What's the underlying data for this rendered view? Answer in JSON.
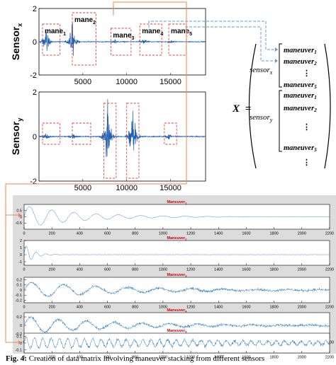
{
  "figure": {
    "matrix": {
      "lhs": "X",
      "eq": "=",
      "groups": [
        {
          "sensor": "sensor",
          "sub": "x",
          "rows": [
            "maneuver",
            "maneuver",
            "maneuver"
          ],
          "row_subs": [
            "1",
            "2",
            "5"
          ]
        },
        {
          "sensor": "sensor",
          "sub": "y",
          "rows": [
            "maneuver",
            "maneuver",
            "maneuver"
          ],
          "row_subs": [
            "1",
            "2",
            "5"
          ]
        }
      ],
      "dots": "⋮"
    },
    "caption": {
      "label": "Fig. 4:",
      "text": " Creation of data matrix involving maneuver stacking from different sensors"
    }
  },
  "chart_data": [
    {
      "type": "line",
      "title": "",
      "ylabel": "Sensor",
      "ylabel_sub": "x",
      "xlabel": "",
      "xlim": [
        0,
        19000
      ],
      "ylim": [
        -2,
        2
      ],
      "xticks": [
        "5000",
        "10000",
        "15000"
      ],
      "xtick_values": [
        5000,
        10000,
        15000
      ],
      "yticks": [
        "2",
        "0",
        "-2"
      ],
      "ytick_values": [
        2,
        0,
        -2
      ],
      "color": "#1f5fb4",
      "bursts": [
        {
          "center": 800,
          "amp": 0.9
        },
        {
          "center": 3800,
          "amp": 1.3
        },
        {
          "center": 8700,
          "amp": 0.15
        },
        {
          "center": 12000,
          "amp": 0.25
        },
        {
          "center": 15000,
          "amp": 0.15
        }
      ],
      "annotations": [
        {
          "label": "mane",
          "sub": "1",
          "x0": 400,
          "x1": 2400
        },
        {
          "label": "mane",
          "sub": "2",
          "x0": 3800,
          "x1": 6500
        },
        {
          "label": "mane",
          "sub": "3",
          "x0": 8200,
          "x1": 10500
        },
        {
          "label": "mane",
          "sub": "4",
          "x0": 11500,
          "x1": 14000
        },
        {
          "label": "mane",
          "sub": "5",
          "x0": 14800,
          "x1": 16800
        }
      ]
    },
    {
      "type": "line",
      "title": "",
      "ylabel": "Sensor",
      "ylabel_sub": "y",
      "xlabel": "",
      "xlim": [
        0,
        19000
      ],
      "ylim": [
        -2,
        2
      ],
      "xticks": [
        "5000",
        "10000",
        "15000"
      ],
      "xtick_values": [
        5000,
        10000,
        15000
      ],
      "yticks": [
        "2",
        "0",
        "-2"
      ],
      "ytick_values": [
        2,
        0,
        -2
      ],
      "color": "#1f5fb4",
      "bursts": [
        {
          "center": 800,
          "amp": 0.2
        },
        {
          "center": 3900,
          "amp": 0.2
        },
        {
          "center": 7800,
          "amp": 1.7
        },
        {
          "center": 10700,
          "amp": 1.5
        },
        {
          "center": 14800,
          "amp": 0.2
        }
      ],
      "annotations": [
        {
          "x0": 400,
          "x1": 2400
        },
        {
          "x0": 3800,
          "x1": 5900
        },
        {
          "x0": 7400,
          "x1": 8800
        },
        {
          "x0": 10000,
          "x1": 11400
        },
        {
          "x0": 14300,
          "x1": 15700
        }
      ]
    },
    {
      "type": "line",
      "title": "Maneuver",
      "title_sub": "1",
      "xlim": [
        0,
        2200
      ],
      "ylim": [
        -1,
        1
      ],
      "yticks": [
        "0.5",
        "0",
        "-0.5"
      ],
      "ytick_values": [
        0.5,
        0,
        -0.5
      ],
      "xticks": [
        "0",
        "200",
        "400",
        "600",
        "800",
        "1000",
        "1200",
        "1400",
        "1600",
        "1800",
        "2000",
        "2200"
      ],
      "xtick_values": [
        0,
        200,
        400,
        600,
        800,
        1000,
        1200,
        1400,
        1600,
        1800,
        2000,
        2200
      ],
      "color": "#2f7ec2",
      "signal": {
        "amp": 0.9,
        "decay": 400,
        "period": 160,
        "noise": 0.03
      }
    },
    {
      "type": "line",
      "title": "Maneuver",
      "title_sub": "2",
      "xlim": [
        0,
        2200
      ],
      "ylim": [
        -1.5,
        2
      ],
      "yticks": [
        "2",
        "1",
        "0",
        "-1"
      ],
      "ytick_values": [
        2,
        1,
        0,
        -1
      ],
      "xticks": [
        "0",
        "200",
        "400",
        "600",
        "800",
        "1000",
        "1200",
        "1400",
        "1600",
        "1800",
        "2000",
        "2200"
      ],
      "xtick_values": [
        0,
        200,
        400,
        600,
        800,
        1000,
        1200,
        1400,
        1600,
        1800,
        2000,
        2200
      ],
      "color": "#2f7ec2",
      "signal": {
        "amp": 1.6,
        "decay": 60,
        "period": 70,
        "noise": 0.04
      }
    },
    {
      "type": "line",
      "title": "Maneuver",
      "title_sub": "3",
      "xlim": [
        0,
        2200
      ],
      "ylim": [
        -0.25,
        0.25
      ],
      "yticks": [
        "0.2",
        "0.1",
        "0",
        "-0.1",
        "-0.2"
      ],
      "ytick_values": [
        0.2,
        0.1,
        0,
        -0.1,
        -0.2
      ],
      "xticks": [
        "0",
        "200",
        "400",
        "600",
        "800",
        "1000",
        "1200",
        "1400",
        "1600",
        "1800",
        "2000",
        "2200"
      ],
      "xtick_values": [
        0,
        200,
        400,
        600,
        800,
        1000,
        1200,
        1400,
        1600,
        1800,
        2000,
        2200
      ],
      "color": "#2f7ec2",
      "signal": {
        "amp": 0.16,
        "decay": 700,
        "period": 230,
        "noise": 0.04
      }
    },
    {
      "type": "line",
      "title": "Maneuver",
      "title_sub": "4",
      "xlim": [
        0,
        2200
      ],
      "ylim": [
        -0.3,
        0.3
      ],
      "yticks": [
        "0.2",
        "0",
        "-0.2"
      ],
      "ytick_values": [
        0.2,
        0,
        -0.2
      ],
      "xticks": [
        "0",
        "200",
        "400",
        "600",
        "800",
        "1000",
        "1200",
        "1400",
        "1600",
        "1800",
        "2000",
        "2200"
      ],
      "xtick_values": [
        0,
        200,
        400,
        600,
        800,
        1000,
        1200,
        1400,
        1600,
        1800,
        2000,
        2200
      ],
      "color": "#2f7ec2",
      "signal": {
        "amp": 0.2,
        "decay": 650,
        "period": 200,
        "noise": 0.05
      }
    },
    {
      "type": "line",
      "title": "Maneuver",
      "title_sub": "5",
      "xlim": [
        0,
        2200
      ],
      "ylim": [
        -0.15,
        0.15
      ],
      "yticks": [
        "0.1",
        "0",
        "-0.1"
      ],
      "ytick_values": [
        0.1,
        0,
        -0.1
      ],
      "xticks": [
        "0",
        "200",
        "400",
        "600",
        "800",
        "1000",
        "1200",
        "1400",
        "1600",
        "1800",
        "2000",
        "2200"
      ],
      "xtick_values": [
        0,
        200,
        400,
        600,
        800,
        1000,
        1200,
        1400,
        1600,
        1800,
        2000,
        2200
      ],
      "color": "#2f7ec2",
      "signal": {
        "amp": 0.08,
        "decay": 2000,
        "period": 60,
        "noise": 0.035
      }
    }
  ]
}
